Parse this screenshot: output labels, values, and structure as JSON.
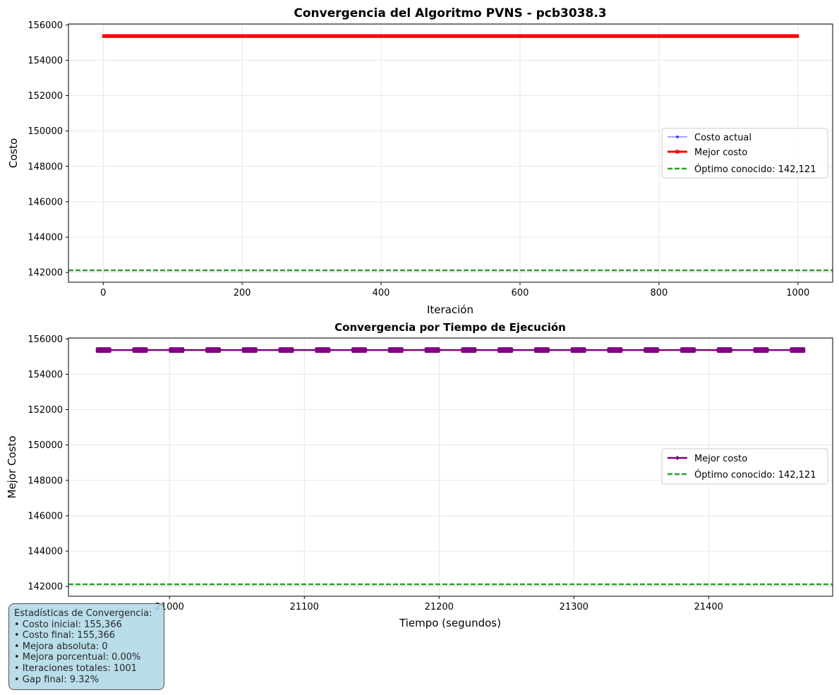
{
  "colors": {
    "current": "#0000ff",
    "best_top": "#ff0000",
    "best_bottom": "#800080",
    "optimum": "#2ca02c",
    "grid": "#e6e6e6",
    "stats_bg": "#add8e6"
  },
  "chart_data": [
    {
      "type": "line",
      "title": "Convergencia del Algoritmo PVNS - pcb3038.3",
      "xlabel": "Iteración",
      "ylabel": "Costo",
      "xlim": [
        -50,
        1050
      ],
      "ylim": [
        141450,
        156050
      ],
      "xticks": [
        0,
        200,
        400,
        600,
        800,
        1000
      ],
      "yticks": [
        142000,
        144000,
        146000,
        148000,
        150000,
        152000,
        154000,
        156000
      ],
      "grid": true,
      "legend_position": "center-right",
      "x_range": [
        0,
        1000
      ],
      "series": [
        {
          "name": "Costo actual",
          "style": "line-dot",
          "value": 155366
        },
        {
          "name": "Mejor costo",
          "style": "line-square",
          "value": 155366
        }
      ],
      "reference_line": {
        "name": "Óptimo conocido: 142,121",
        "value": 142121,
        "style": "dashed"
      }
    },
    {
      "type": "line",
      "title": "Convergencia por Tiempo de Ejecución",
      "xlabel": "Tiempo (segundos)",
      "ylabel": "Mejor Costo",
      "xlim": [
        20925,
        21492
      ],
      "ylim": [
        141450,
        156050
      ],
      "xticks": [
        21000,
        21100,
        21200,
        21300,
        21400
      ],
      "yticks": [
        142000,
        144000,
        146000,
        148000,
        150000,
        152000,
        154000,
        156000
      ],
      "grid": true,
      "legend_position": "center-right",
      "x_range": [
        20950,
        21467
      ],
      "series": [
        {
          "name": "Mejor costo",
          "style": "line-diamond",
          "value": 155366
        }
      ],
      "reference_line": {
        "name": "Óptimo conocido: 142,121",
        "value": 142121,
        "style": "dashed"
      }
    }
  ],
  "stats": {
    "title": "Estadísticas de Convergencia:",
    "lines": [
      "• Costo inicial: 155,366",
      "• Costo final: 155,366",
      "• Mejora absoluta: 0",
      "• Mejora porcentual: 0.00%",
      "• Iteraciones totales: 1001",
      "• Gap final: 9.32%"
    ]
  }
}
